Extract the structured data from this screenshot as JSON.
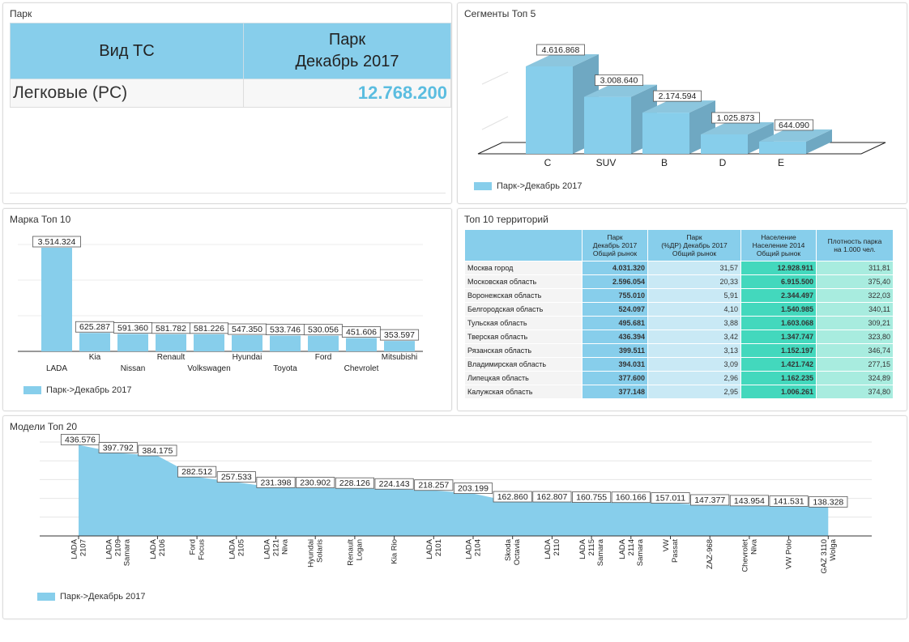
{
  "park": {
    "title": "Парк",
    "col1": "Вид ТС",
    "col2_line1": "Парк",
    "col2_line2": "Декабрь 2017",
    "row_label": "Легковые (PC)",
    "row_value": "12.768.200"
  },
  "segments": {
    "title": "Сегменты Топ 5",
    "legend": "Парк->Декабрь 2017"
  },
  "brands": {
    "title": "Марка Топ 10",
    "legend": "Парк->Декабрь 2017"
  },
  "territories": {
    "title": "Топ 10 территорий",
    "headers": [
      [
        "Парк",
        "Декабрь 2017",
        "Общий рынок"
      ],
      [
        "Парк",
        "(%ДР) Декабрь 2017",
        "Общий рынок"
      ],
      [
        "Население",
        "Население 2014",
        "Общий рынок"
      ],
      [
        "Плотность парка",
        "на 1.000 чел."
      ]
    ],
    "rows": [
      {
        "name": "Москва город",
        "park": "4.031.320",
        "pct": "31,57",
        "pop": "12.928.911",
        "dens": "311,81"
      },
      {
        "name": "Московская область",
        "park": "2.596.054",
        "pct": "20,33",
        "pop": "6.915.500",
        "dens": "375,40"
      },
      {
        "name": "Воронежская область",
        "park": "755.010",
        "pct": "5,91",
        "pop": "2.344.497",
        "dens": "322,03"
      },
      {
        "name": "Белгородская область",
        "park": "524.097",
        "pct": "4,10",
        "pop": "1.540.985",
        "dens": "340,11"
      },
      {
        "name": "Тульская область",
        "park": "495.681",
        "pct": "3,88",
        "pop": "1.603.068",
        "dens": "309,21"
      },
      {
        "name": "Тверская область",
        "park": "436.394",
        "pct": "3,42",
        "pop": "1.347.747",
        "dens": "323,80"
      },
      {
        "name": "Рязанская область",
        "park": "399.511",
        "pct": "3,13",
        "pop": "1.152.197",
        "dens": "346,74"
      },
      {
        "name": "Владимирская область",
        "park": "394.031",
        "pct": "3,09",
        "pop": "1.421.742",
        "dens": "277,15"
      },
      {
        "name": "Липецкая область",
        "park": "377.600",
        "pct": "2,96",
        "pop": "1.162.235",
        "dens": "324,89"
      },
      {
        "name": "Калужская область",
        "park": "377.148",
        "pct": "2,95",
        "pop": "1.006.261",
        "dens": "374,80"
      }
    ]
  },
  "models": {
    "title": "Модели Топ 20",
    "legend": "Парк->Декабрь 2017"
  },
  "colors": {
    "bar": "#87ceeb",
    "bar_top": "#8cc6de",
    "bar_side": "#6fa8c2",
    "accent": "#5bbde0"
  },
  "chart_data": [
    {
      "type": "bar",
      "title": "Сегменты Топ 5",
      "categories": [
        "C",
        "SUV",
        "B",
        "D",
        "E"
      ],
      "series": [
        {
          "name": "Парк->Декабрь 2017",
          "values": [
            4616868,
            3008640,
            2174594,
            1025873,
            644090
          ]
        }
      ],
      "labels": [
        "4.616.868",
        "3.008.640",
        "2.174.594",
        "1.025.873",
        "644.090"
      ],
      "legend": "bottom-left"
    },
    {
      "type": "bar",
      "title": "Марка Топ 10",
      "categories": [
        "LADA",
        "Kia",
        "Nissan",
        "Renault",
        "Volkswagen",
        "Hyundai",
        "Toyota",
        "Ford",
        "Chevrolet",
        "Mitsubishi"
      ],
      "series": [
        {
          "name": "Парк->Декабрь 2017",
          "values": [
            3514324,
            625287,
            591360,
            581782,
            581226,
            547350,
            533746,
            530056,
            451606,
            353597
          ]
        }
      ],
      "labels": [
        "3.514.324",
        "625.287",
        "591.360",
        "581.782",
        "581.226",
        "547.350",
        "533.746",
        "530.056",
        "451.606",
        "353.597"
      ],
      "legend": "bottom-left"
    },
    {
      "type": "area",
      "title": "Модели Топ 20",
      "categories": [
        "LADA 2107",
        "LADA 2109 Samara",
        "LADA 2106",
        "Ford Focus",
        "LADA 2105",
        "LADA 2121 Niva",
        "Hyundai Solaris",
        "Renault Logan",
        "Kia Rio",
        "LADA 2101",
        "LADA 2104",
        "Skoda Octavia",
        "LADA 2110",
        "LADA 2115 Samara",
        "LADA 2114 Samara",
        "VW Passat",
        "ZAZ-968",
        "Chevrolet Niva",
        "VW Polo",
        "GAZ 3110 Wolga"
      ],
      "category_lines": [
        [
          "LADA",
          "2107"
        ],
        [
          "LADA",
          "2109",
          "Samara"
        ],
        [
          "LADA",
          "2106"
        ],
        [
          "Ford",
          "Focus"
        ],
        [
          "LADA",
          "2105"
        ],
        [
          "LADA",
          "2121",
          "Niva"
        ],
        [
          "Hyundai",
          "Solaris"
        ],
        [
          "Renault",
          "Logan"
        ],
        [
          "Kia Rio"
        ],
        [
          "LADA",
          "2101"
        ],
        [
          "LADA",
          "2104"
        ],
        [
          "Skoda",
          "Octavia"
        ],
        [
          "LADA",
          "2110"
        ],
        [
          "LADA",
          "2115",
          "Samara"
        ],
        [
          "LADA",
          "2114",
          "Samara"
        ],
        [
          "VW",
          "Passat"
        ],
        [
          "ZAZ-968"
        ],
        [
          "Chevrolet",
          "Niva"
        ],
        [
          "VW Polo"
        ],
        [
          "GAZ 3110",
          "Wolga"
        ]
      ],
      "series": [
        {
          "name": "Парк->Декабрь 2017",
          "values": [
            436576,
            397792,
            384175,
            282512,
            257533,
            231398,
            230902,
            228126,
            224143,
            218257,
            203199,
            162860,
            162807,
            160755,
            160166,
            157011,
            147377,
            143954,
            141531,
            138328
          ]
        }
      ],
      "labels": [
        "436.576",
        "397.792",
        "384.175",
        "282.512",
        "257.533",
        "231.398",
        "230.902",
        "228.126",
        "224.143",
        "218.257",
        "203.199",
        "162.860",
        "162.807",
        "160.755",
        "160.166",
        "157.011",
        "147.377",
        "143.954",
        "141.531",
        "138.328"
      ],
      "grid": true,
      "legend": "bottom-left"
    }
  ]
}
